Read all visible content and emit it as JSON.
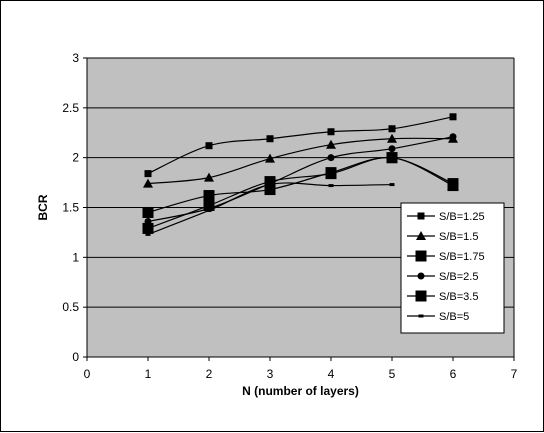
{
  "chart_data": {
    "type": "line",
    "title": "",
    "xlabel": "N (number of layers)",
    "ylabel": "BCR",
    "xlim": [
      0,
      7
    ],
    "ylim": [
      0,
      3
    ],
    "x_ticks": [
      "0",
      "1",
      "2",
      "3",
      "4",
      "5",
      "6",
      "7"
    ],
    "y_ticks": [
      "0",
      "0.5",
      "1",
      "1.5",
      "2",
      "2.5",
      "3"
    ],
    "grid": "horizontal",
    "legend_position": "right",
    "colors": {
      "plot_background": "#c0c0c0",
      "series": "#000000"
    },
    "series": [
      {
        "name": "S/B=1.25",
        "marker": "square-small",
        "x": [
          1,
          2,
          3,
          4,
          5,
          6
        ],
        "y": [
          1.84,
          2.12,
          2.19,
          2.26,
          2.29,
          2.41
        ]
      },
      {
        "name": "S/B=1.5",
        "marker": "triangle",
        "x": [
          1,
          2,
          3,
          4,
          5,
          6
        ],
        "y": [
          1.74,
          1.8,
          1.99,
          2.13,
          2.19,
          2.19
        ]
      },
      {
        "name": "S/B=1.75",
        "marker": "square-large",
        "x": [
          1,
          2,
          3,
          4,
          5,
          6
        ],
        "y": [
          1.45,
          1.62,
          1.68,
          1.85,
          2.0,
          1.74
        ]
      },
      {
        "name": "S/B=2.5",
        "marker": "circle",
        "x": [
          1,
          2,
          3,
          4,
          5,
          6
        ],
        "y": [
          1.36,
          1.49,
          1.74,
          2.0,
          2.09,
          2.21
        ]
      },
      {
        "name": "S/B=3.5",
        "marker": "square-large",
        "x": [
          1,
          2,
          3,
          4,
          5,
          6
        ],
        "y": [
          1.29,
          1.52,
          1.76,
          1.84,
          2.0,
          1.72
        ]
      },
      {
        "name": "S/B=5",
        "marker": "dash",
        "x": [
          1,
          2,
          3,
          4,
          5
        ],
        "y": [
          1.23,
          1.47,
          1.73,
          1.72,
          1.73
        ]
      }
    ]
  }
}
